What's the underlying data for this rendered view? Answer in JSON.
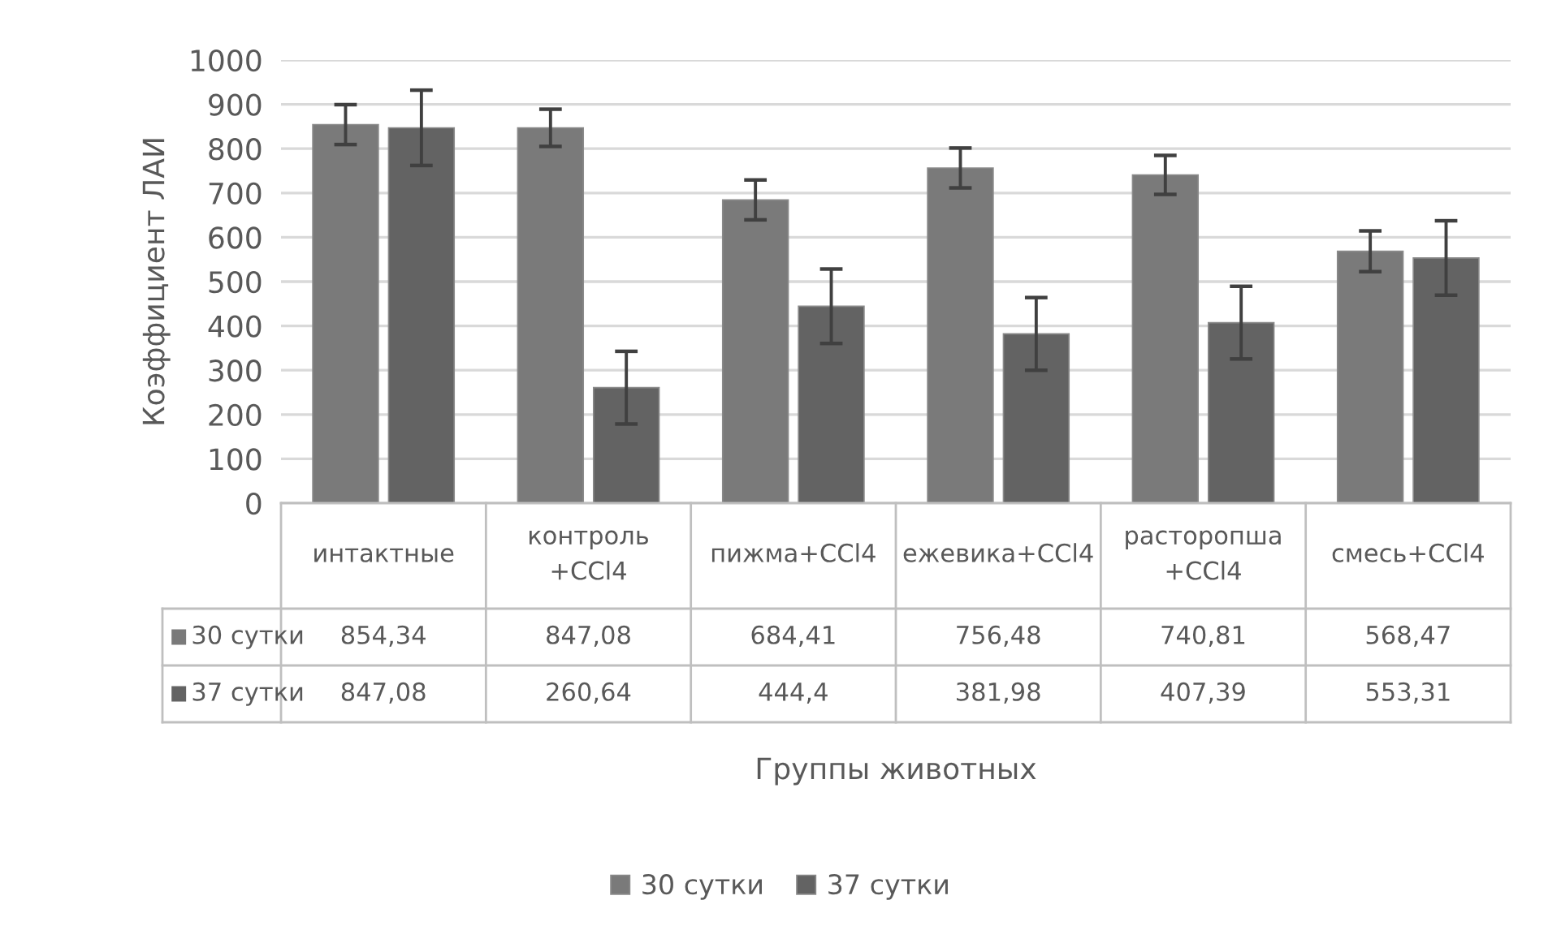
{
  "chart_data": {
    "type": "bar",
    "categories": [
      "интактные",
      "контроль\n+CCl4",
      "пижма+CCl4",
      "ежевика+CCl4",
      "расторопша\n+CCl4",
      "смесь+CCl4"
    ],
    "series": [
      {
        "name": "30 сутки",
        "color": "#7a7a7a",
        "values": [
          854.34,
          847.08,
          684.41,
          756.48,
          740.81,
          568.47
        ],
        "errors": [
          45,
          42,
          45,
          45,
          44,
          46
        ],
        "value_labels": [
          "854,34",
          "847,08",
          "684,41",
          "756,48",
          "740,81",
          "568,47"
        ]
      },
      {
        "name": "37 сутки",
        "color": "#636363",
        "values": [
          847.08,
          260.64,
          444.4,
          381.98,
          407.39,
          553.31
        ],
        "errors": [
          85,
          82,
          84,
          82,
          82,
          84
        ],
        "value_labels": [
          "847,08",
          "260,64",
          "444,4",
          "381,98",
          "407,39",
          "553,31"
        ]
      }
    ],
    "annotations": [
      "Группы животных"
    ],
    "ylabel": "Коэффициент ЛАИ",
    "ylim": [
      0,
      1000
    ],
    "yticks": [
      0,
      100,
      200,
      300,
      400,
      500,
      600,
      700,
      800,
      900,
      1000
    ],
    "grid": "y",
    "legend": "bottom"
  }
}
